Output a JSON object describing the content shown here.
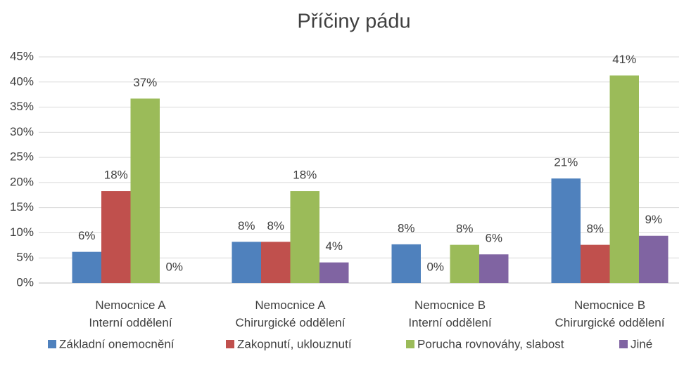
{
  "chart_data": {
    "type": "bar",
    "title": "Příčiny pádu",
    "categories": [
      [
        "Nemocnice A",
        "Interní oddělení"
      ],
      [
        "Nemocnice A",
        "Chirurgické oddělení"
      ],
      [
        "Nemocnice B",
        "Interní oddělení"
      ],
      [
        "Nemocnice B",
        "Chirurgické oddělení"
      ]
    ],
    "series": [
      {
        "name": "Základní onemocnění",
        "color": "#4f81bd",
        "values": [
          6.2,
          8.2,
          7.7,
          20.8
        ],
        "value_labels": [
          "6%",
          "8%",
          "8%",
          "21%"
        ]
      },
      {
        "name": "Zakopnutí, uklouznutí",
        "color": "#c0504d",
        "values": [
          18.3,
          8.2,
          0,
          7.6
        ],
        "value_labels": [
          "18%",
          "8%",
          "0%",
          "8%"
        ]
      },
      {
        "name": "Porucha rovnováhy, slabost",
        "color": "#9bbb59",
        "values": [
          36.7,
          18.3,
          7.6,
          41.3
        ],
        "value_labels": [
          "37%",
          "18%",
          "8%",
          "41%"
        ]
      },
      {
        "name": "Jiné",
        "color": "#8064a2",
        "values": [
          0,
          4.1,
          5.7,
          9.4
        ],
        "value_labels": [
          "0%",
          "4%",
          "6%",
          "9%"
        ]
      }
    ],
    "ylim": [
      0,
      45
    ],
    "yticks": [
      {
        "value": 0,
        "label": "0%"
      },
      {
        "value": 5,
        "label": "5%"
      },
      {
        "value": 10,
        "label": "10%"
      },
      {
        "value": 15,
        "label": "15%"
      },
      {
        "value": 20,
        "label": "20%"
      },
      {
        "value": 25,
        "label": "25%"
      },
      {
        "value": 30,
        "label": "30%"
      },
      {
        "value": 35,
        "label": "35%"
      },
      {
        "value": 40,
        "label": "40%"
      },
      {
        "value": 45,
        "label": "45%"
      }
    ],
    "grid": true,
    "legend": "bottom"
  }
}
